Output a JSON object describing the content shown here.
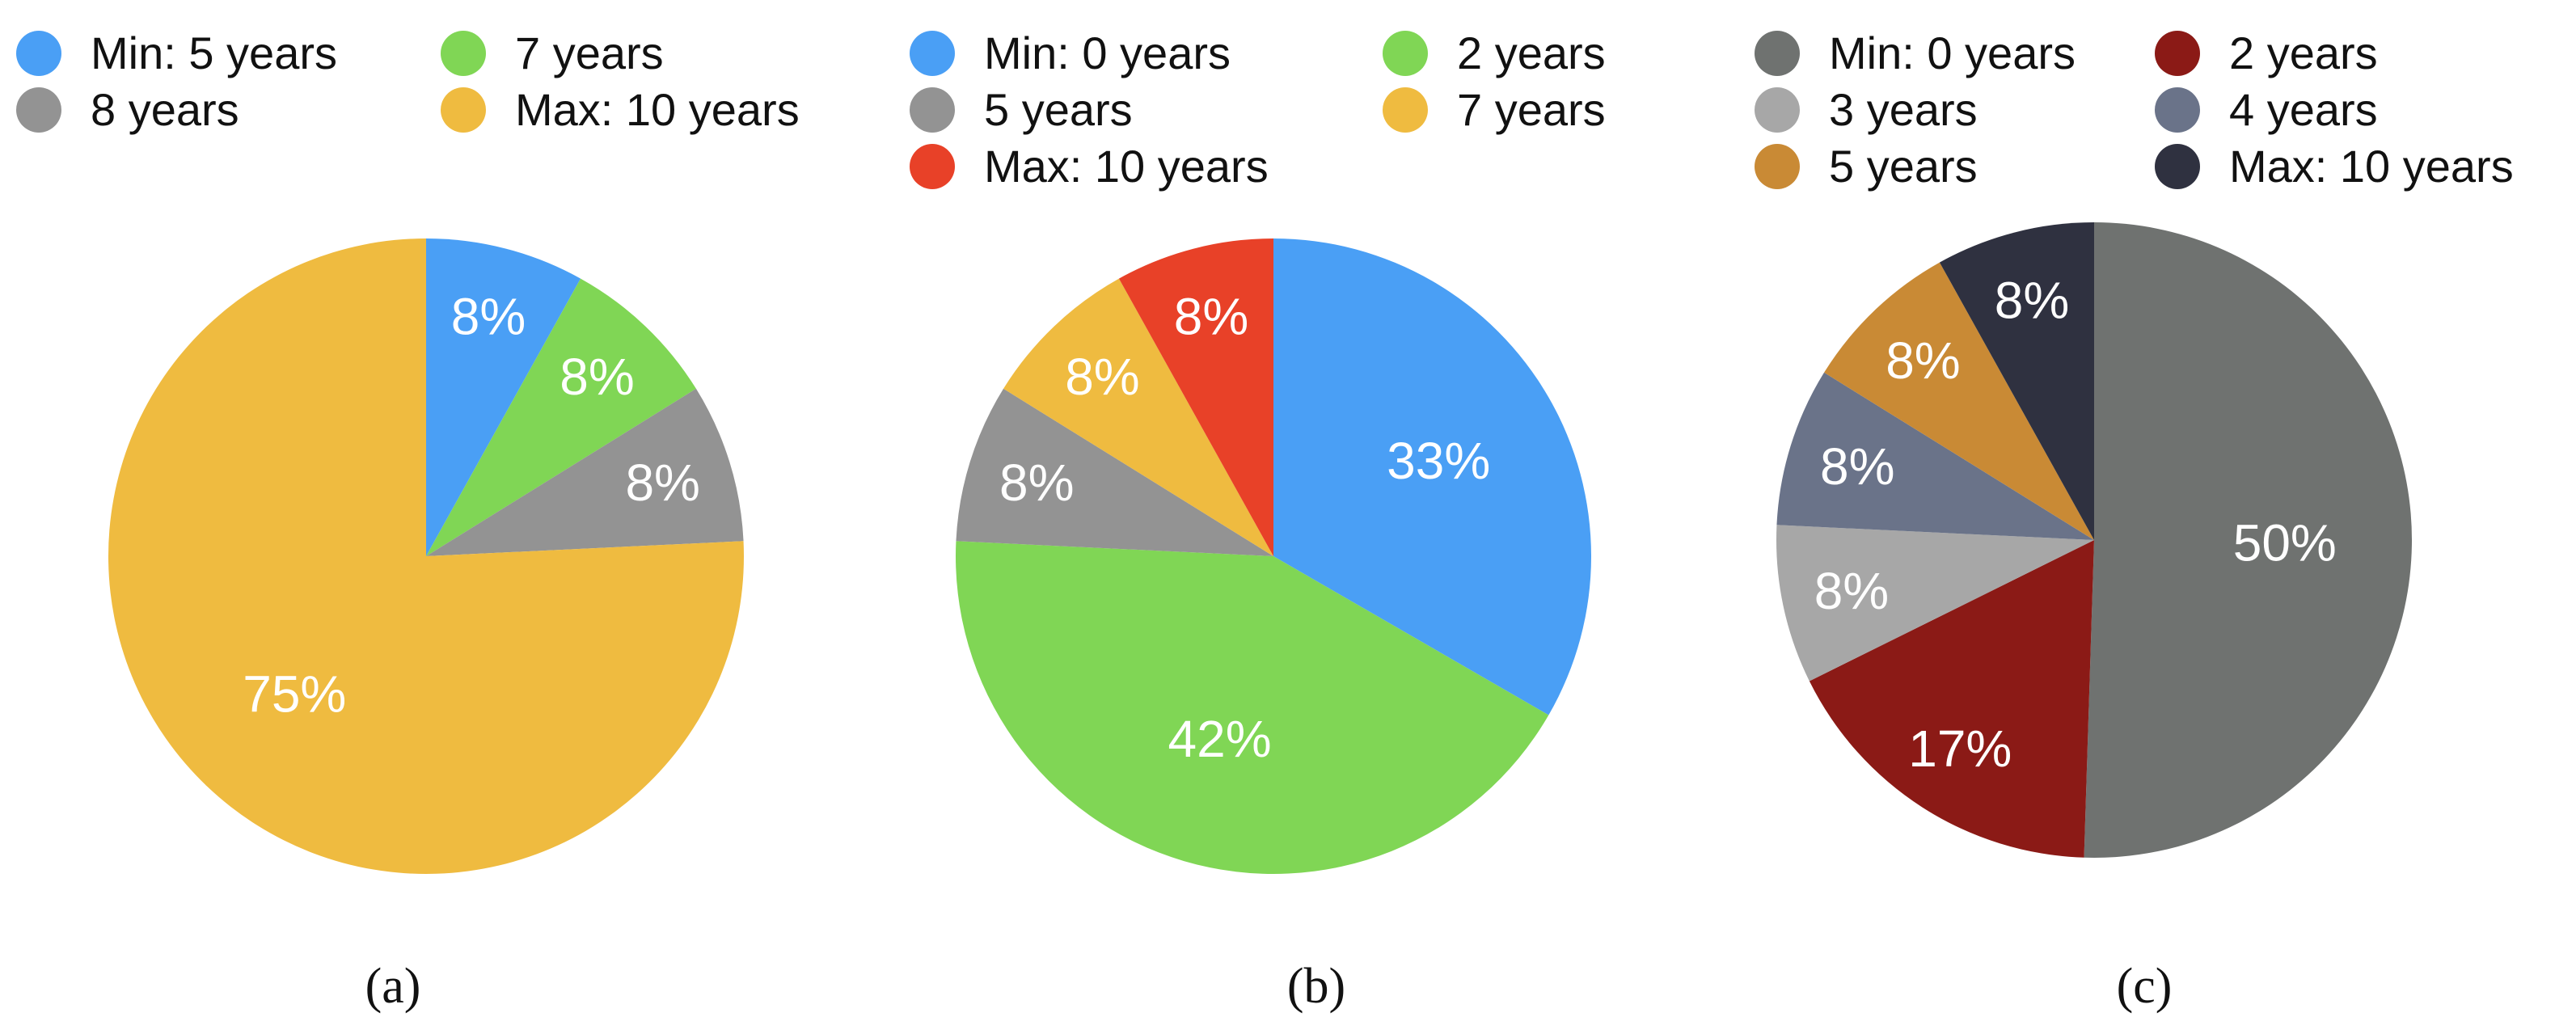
{
  "chart_data": [
    {
      "type": "pie",
      "caption": "(a)",
      "slices": [
        {
          "label": "Min: 5 years",
          "value": 8,
          "value_label": "8%",
          "color": "#4a9ff5"
        },
        {
          "label": "7 years",
          "value": 8,
          "value_label": "8%",
          "color": "#80d655"
        },
        {
          "label": "8 years",
          "value": 8,
          "value_label": "8%",
          "color": "#939393"
        },
        {
          "label": "Max: 10 years",
          "value": 75,
          "value_label": "75%",
          "color": "#efbb40"
        }
      ]
    },
    {
      "type": "pie",
      "caption": "(b)",
      "slices": [
        {
          "label": "Min: 0 years",
          "value": 33,
          "value_label": "33%",
          "color": "#4a9ff5"
        },
        {
          "label": "2 years",
          "value": 42,
          "value_label": "42%",
          "color": "#80d655"
        },
        {
          "label": "5 years",
          "value": 8,
          "value_label": "8%",
          "color": "#939393"
        },
        {
          "label": "7 years",
          "value": 8,
          "value_label": "8%",
          "color": "#efbb40"
        },
        {
          "label": "Max: 10 years",
          "value": 8,
          "value_label": "8%",
          "color": "#e84128"
        }
      ]
    },
    {
      "type": "pie",
      "caption": "(c)",
      "slices": [
        {
          "label": "Min: 0 years",
          "value": 50,
          "value_label": "50%",
          "color": "#6f7270"
        },
        {
          "label": "2 years",
          "value": 17,
          "value_label": "17%",
          "color": "#8b1a16"
        },
        {
          "label": "3 years",
          "value": 8,
          "value_label": "8%",
          "color": "#a7a7a7"
        },
        {
          "label": "4 years",
          "value": 8,
          "value_label": "8%",
          "color": "#6a7389"
        },
        {
          "label": "5 years",
          "value": 8,
          "value_label": "8%",
          "color": "#c98a35"
        },
        {
          "label": "Max: 10 years",
          "value": 8,
          "value_label": "8%",
          "color": "#2f3140"
        }
      ]
    }
  ]
}
